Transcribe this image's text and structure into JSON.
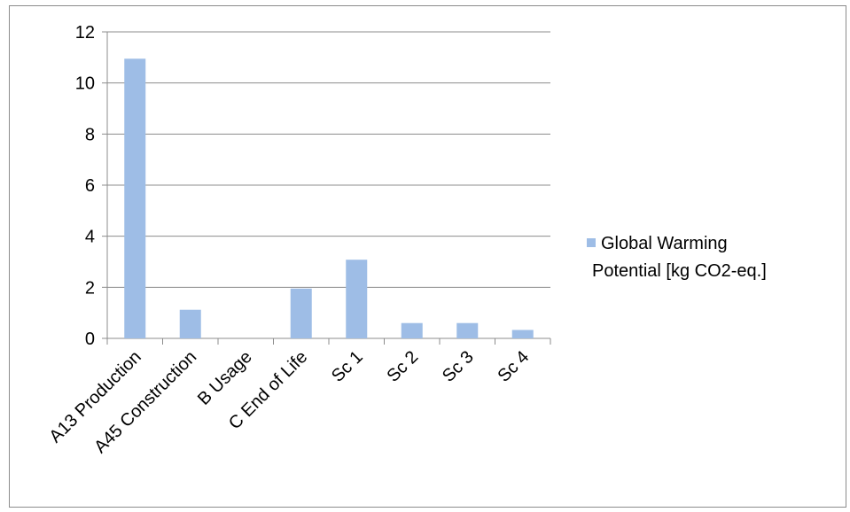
{
  "chart_data": {
    "type": "bar",
    "title": "",
    "xlabel": "",
    "ylabel": "",
    "categories": [
      "A13 Production",
      "A45 Construction",
      "B Usage",
      "C End of Life",
      "Sc 1",
      "Sc 2",
      "Sc 3",
      "Sc 4"
    ],
    "series": [
      {
        "name": "Global Warming Potential [kg CO2-eq.]",
        "values": [
          10.95,
          1.12,
          0,
          1.95,
          3.08,
          0.6,
          0.6,
          0.33
        ],
        "color": "#9ebde6"
      }
    ],
    "ylim": [
      0,
      12
    ],
    "yticks": [
      "0",
      "2",
      "4",
      "6",
      "8",
      "10",
      "12"
    ],
    "grid": true,
    "legend_position": "right",
    "legend_lines": [
      "Global Warming",
      "Potential [kg CO2-eq.]"
    ]
  }
}
